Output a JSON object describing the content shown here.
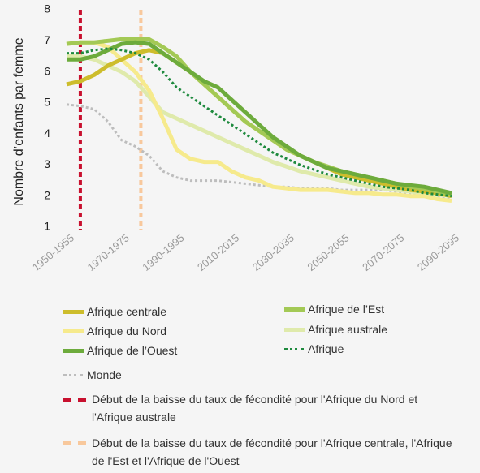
{
  "chart_data": {
    "type": "line",
    "y_label": "Nombre d’enfants par femme",
    "x": [
      1950,
      1955,
      1960,
      1965,
      1970,
      1975,
      1980,
      1985,
      1990,
      1995,
      2000,
      2005,
      2010,
      2015,
      2020,
      2025,
      2030,
      2035,
      2040,
      2045,
      2050,
      2055,
      2060,
      2065,
      2070,
      2075,
      2080,
      2085,
      2090
    ],
    "xlim": [
      1950,
      2090
    ],
    "xticks": [
      {
        "value": 1950,
        "label": "1950-1955"
      },
      {
        "value": 1970,
        "label": "1970-1975"
      },
      {
        "value": 1990,
        "label": "1990-1995"
      },
      {
        "value": 2010,
        "label": "2010-2015"
      },
      {
        "value": 2030,
        "label": "2030-2035"
      },
      {
        "value": 2050,
        "label": "2050-2055"
      },
      {
        "value": 2070,
        "label": "2070-2075"
      },
      {
        "value": 2090,
        "label": "2090-2095"
      }
    ],
    "ylim": [
      1,
      8
    ],
    "yticks": [
      1,
      2,
      3,
      4,
      5,
      6,
      7,
      8
    ],
    "grid": false,
    "series": [
      {
        "name": "Afrique centrale",
        "color": "#cdbd2c",
        "style": "solid",
        "values": [
          5.6,
          5.7,
          5.9,
          6.2,
          6.4,
          6.6,
          6.7,
          6.6,
          6.3,
          6.0,
          5.6,
          5.2,
          4.8,
          4.4,
          4.1,
          3.8,
          3.5,
          3.3,
          3.1,
          2.9,
          2.7,
          2.6,
          2.5,
          2.4,
          2.3,
          2.2,
          2.15,
          2.1,
          2.0
        ]
      },
      {
        "name": "Afrique de l’Est",
        "color": "#a3c955",
        "style": "solid",
        "values": [
          6.9,
          6.95,
          6.95,
          7.0,
          7.05,
          7.05,
          7.05,
          6.8,
          6.5,
          6.0,
          5.6,
          5.2,
          4.8,
          4.4,
          4.1,
          3.8,
          3.5,
          3.3,
          3.1,
          2.95,
          2.8,
          2.7,
          2.6,
          2.5,
          2.4,
          2.3,
          2.25,
          2.15,
          2.05
        ]
      },
      {
        "name": "Afrique du Nord",
        "color": "#f6ea8c",
        "style": "solid",
        "values": [
          6.9,
          6.95,
          6.95,
          6.8,
          6.4,
          6.0,
          5.4,
          4.5,
          3.5,
          3.2,
          3.1,
          3.1,
          2.8,
          2.6,
          2.5,
          2.3,
          2.25,
          2.2,
          2.2,
          2.2,
          2.15,
          2.1,
          2.1,
          2.05,
          2.05,
          2.0,
          2.0,
          1.9,
          1.85
        ]
      },
      {
        "name": "Afrique australe",
        "color": "#dfeaab",
        "style": "solid",
        "values": [
          6.5,
          6.5,
          6.4,
          6.2,
          6.0,
          5.7,
          5.2,
          4.7,
          4.5,
          4.3,
          4.1,
          3.9,
          3.7,
          3.5,
          3.3,
          3.1,
          2.95,
          2.8,
          2.7,
          2.6,
          2.5,
          2.4,
          2.3,
          2.25,
          2.2,
          2.15,
          2.1,
          2.05,
          2.0
        ]
      },
      {
        "name": "Afrique de l’Ouest",
        "color": "#6dab3c",
        "style": "solid",
        "values": [
          6.4,
          6.4,
          6.5,
          6.7,
          6.9,
          6.95,
          6.9,
          6.6,
          6.3,
          6.0,
          5.7,
          5.5,
          5.1,
          4.7,
          4.3,
          3.9,
          3.6,
          3.3,
          3.1,
          2.9,
          2.8,
          2.7,
          2.6,
          2.5,
          2.4,
          2.35,
          2.3,
          2.2,
          2.1
        ]
      },
      {
        "name": "Afrique",
        "color": "#1e8a3e",
        "style": "dotted",
        "values": [
          6.6,
          6.6,
          6.7,
          6.75,
          6.7,
          6.6,
          6.4,
          6.0,
          5.5,
          5.2,
          4.9,
          4.6,
          4.3,
          4.0,
          3.7,
          3.4,
          3.2,
          3.0,
          2.85,
          2.7,
          2.6,
          2.5,
          2.4,
          2.3,
          2.25,
          2.2,
          2.1,
          2.05,
          2.0
        ]
      },
      {
        "name": "Monde",
        "color": "#bdbdbd",
        "style": "dotted",
        "values": [
          4.95,
          4.9,
          4.8,
          4.4,
          3.8,
          3.6,
          3.3,
          2.8,
          2.6,
          2.5,
          2.5,
          2.5,
          2.45,
          2.4,
          2.35,
          2.3,
          2.3,
          2.25,
          2.25,
          2.25,
          2.2,
          2.2,
          2.2,
          2.2,
          2.15,
          2.1,
          2.1,
          2.0,
          1.95
        ]
      }
    ],
    "markers": [
      {
        "name": "Début de la baisse du taux de fécondité pour l'Afrique du Nord et l'Afrique australe",
        "color": "#c8102e",
        "x": 1955
      },
      {
        "name": "Début de la baisse du taux de fécondité pour l'Afrique centrale, l'Afrique de l'Est et l'Afrique de l'Ouest",
        "color": "#f8c89c",
        "x": 1977
      }
    ]
  }
}
